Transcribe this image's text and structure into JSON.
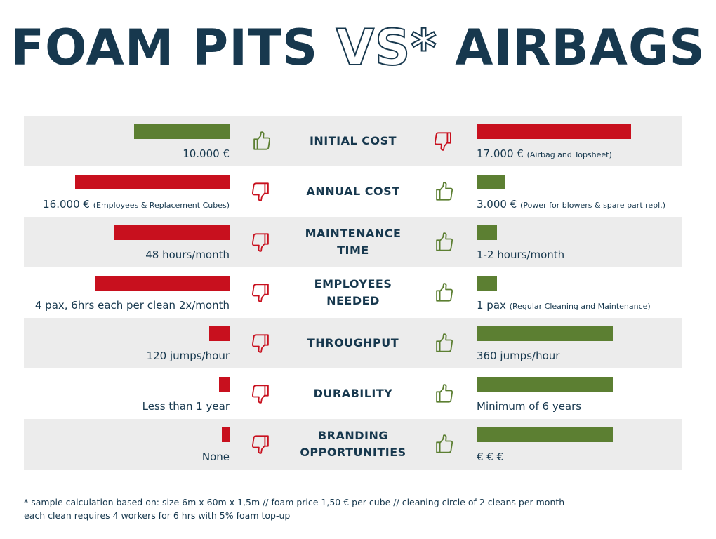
{
  "title": {
    "left": "FOAM PITS",
    "vs": "VS*",
    "right": "AIRBAGS"
  },
  "colors": {
    "good": "#5c7f32",
    "bad": "#c8101e",
    "text": "#17384e",
    "shade": "#ececec"
  },
  "chart_data": {
    "type": "bar",
    "series": [
      {
        "name": "FOAM PITS",
        "side": "left"
      },
      {
        "name": "AIRBAGS",
        "side": "right"
      }
    ],
    "rows": [
      {
        "category": "INITIAL COST",
        "left": {
          "bar": 0.62,
          "rating": "good",
          "text": "10.000 €",
          "note": ""
        },
        "right": {
          "bar": 1.0,
          "rating": "bad",
          "text": "17.000 €",
          "note": "(Airbag and Topsheet)"
        }
      },
      {
        "category": "ANNUAL COST",
        "left": {
          "bar": 1.0,
          "rating": "bad",
          "text": "16.000 €",
          "note": "(Employees & Replacement Cubes)"
        },
        "right": {
          "bar": 0.18,
          "rating": "good",
          "text": "3.000 €",
          "note": "(Power for blowers & spare part repl.)"
        }
      },
      {
        "category": "MAINTENANCE\nTIME",
        "left": {
          "bar": 0.75,
          "rating": "bad",
          "text": "48 hours/month",
          "note": ""
        },
        "right": {
          "bar": 0.13,
          "rating": "good",
          "text": "1-2 hours/month",
          "note": ""
        }
      },
      {
        "category": "EMPLOYEES\nNEEDED",
        "left": {
          "bar": 0.87,
          "rating": "bad",
          "text": "4 pax, 6hrs each per clean 2x/month",
          "note": ""
        },
        "right": {
          "bar": 0.13,
          "rating": "good",
          "text": "1 pax",
          "note": "(Regular Cleaning and Maintenance)"
        }
      },
      {
        "category": "THROUGHPUT",
        "left": {
          "bar": 0.13,
          "rating": "bad",
          "text": "120 jumps/hour",
          "note": ""
        },
        "right": {
          "bar": 0.88,
          "rating": "good",
          "text": "360 jumps/hour",
          "note": ""
        }
      },
      {
        "category": "DURABILITY",
        "left": {
          "bar": 0.07,
          "rating": "bad",
          "text": "Less than 1 year",
          "note": ""
        },
        "right": {
          "bar": 0.88,
          "rating": "good",
          "text": "Minimum of 6 years",
          "note": ""
        }
      },
      {
        "category": "BRANDING\nOPPORTUNITIES",
        "left": {
          "bar": 0.05,
          "rating": "bad",
          "text": "None",
          "note": ""
        },
        "right": {
          "bar": 0.88,
          "rating": "good",
          "text": "€ € €",
          "note": ""
        }
      }
    ]
  },
  "footnote": [
    "* sample calculation based on: size 6m x 60m x 1,5m // foam price 1,50 € per cube // cleaning circle of 2 cleans per month",
    "each clean requires 4 workers for 6 hrs with 5% foam top-up"
  ]
}
